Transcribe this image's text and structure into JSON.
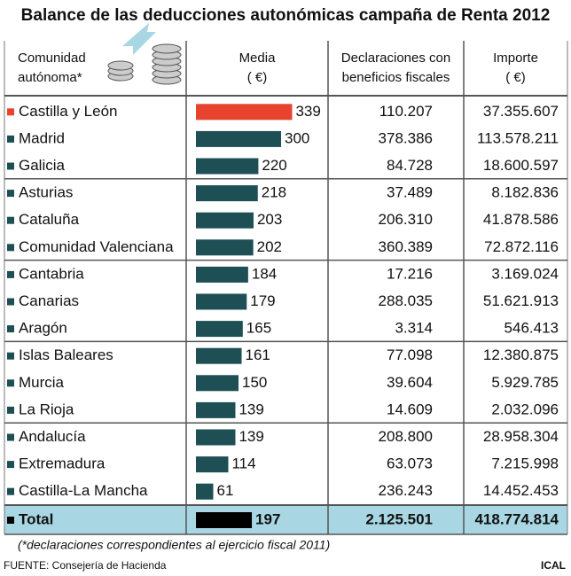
{
  "header": {
    "title": "Balance de las deducciones autonómicas campaña de Renta 2012",
    "columns": [
      [
        "Comunidad",
        "autónoma*"
      ],
      [
        "Media",
        "( €)"
      ],
      [
        "Declaraciones con",
        "beneficios fiscales"
      ],
      [
        "Importe",
        "( €)"
      ]
    ]
  },
  "chart_data": {
    "type": "bar",
    "categories": [
      "Castilla y León",
      "Madrid",
      "Galicia",
      "Asturias",
      "Cataluña",
      "Comunidad Valenciana",
      "Cantabria",
      "Canarias",
      "Aragón",
      "Islas Baleares",
      "Murcia",
      "La Rioja",
      "Andalucía",
      "Extremadura",
      "Castilla-La Mancha"
    ],
    "values": [
      339,
      300,
      220,
      218,
      203,
      202,
      184,
      179,
      165,
      161,
      150,
      139,
      139,
      114,
      61
    ],
    "color": "#1d4f55",
    "highlight_color": "#e8432e",
    "highlight": [
      0
    ]
  },
  "table": {
    "declaraciones": [
      "110.207",
      "378.386",
      "84.728",
      "37.489",
      "206.310",
      "360.389",
      "17.216",
      "288.035",
      "3.314",
      "77.098",
      "39.604",
      "14.609",
      "208.800",
      "63.073",
      "236.243"
    ],
    "importe": [
      "37.355.607",
      "113.578.211",
      "18.600.597",
      "8.182.836",
      "41.878.586",
      "72.872.116",
      "3.169.024",
      "51.621.913",
      "546.413",
      "12.380.875",
      "5.929.785",
      "2.032.096",
      "28.958.304",
      "7.215.998",
      "14.452.453"
    ]
  },
  "total": {
    "label": "Total",
    "media": 197,
    "declaraciones": "2.125.501",
    "importe": "418.774.814",
    "color": "#000000",
    "background": "#a9d6e3"
  },
  "note": "(*declaraciones correspondientes al ejercicio fiscal 2011)",
  "source": "FUENTE: Consejería de Hacienda",
  "credit": "ICAL"
}
